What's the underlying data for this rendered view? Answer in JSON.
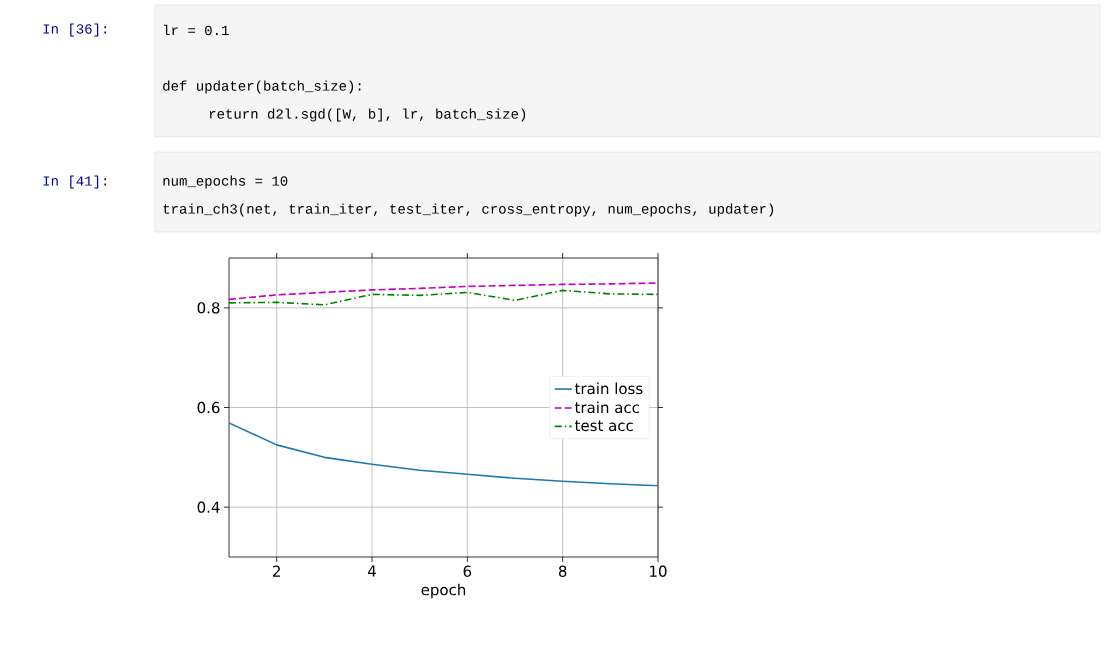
{
  "chart_data": {
    "type": "line",
    "xlabel": "epoch",
    "x": [
      1,
      2,
      3,
      4,
      5,
      6,
      7,
      8,
      9,
      10
    ],
    "xlim": [
      1,
      10
    ],
    "xticks": [
      2,
      4,
      6,
      8,
      10
    ],
    "ylim": [
      0.3,
      0.9
    ],
    "yticks": [
      0.4,
      0.6,
      0.8
    ],
    "grid": true,
    "legend": "right",
    "series": [
      {
        "name": "train loss",
        "color": "#1f77b4",
        "line_style": "solid",
        "values": [
          0.569,
          0.525,
          0.5,
          0.486,
          0.474,
          0.466,
          0.458,
          0.452,
          0.447,
          0.443
        ]
      },
      {
        "name": "train acc",
        "color": "#bf00bf",
        "line_style": "dashed",
        "values": [
          0.817,
          0.826,
          0.831,
          0.836,
          0.839,
          0.843,
          0.845,
          0.847,
          0.848,
          0.85
        ]
      },
      {
        "name": "test acc",
        "color": "#008000",
        "line_style": "dashdot",
        "values": [
          0.81,
          0.811,
          0.806,
          0.827,
          0.825,
          0.831,
          0.815,
          0.835,
          0.828,
          0.827
        ]
      }
    ],
    "annotations": [
      "In  [36]:",
      "lr = 0.1",
      "def updater(batch_size):",
      "return d2l.sgd([W, b], lr, batch_size)",
      "In  [41]:",
      "num_epochs = 10",
      "train_ch3(net, train_iter, test_iter, cross_entropy, num_epochs, updater)"
    ]
  }
}
